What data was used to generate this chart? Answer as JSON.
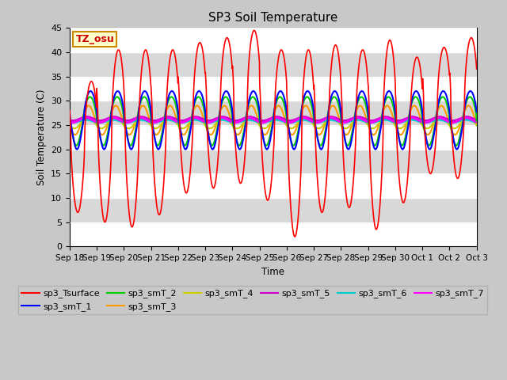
{
  "title": "SP3 Soil Temperature",
  "ylabel": "Soil Temperature (C)",
  "xlabel": "Time",
  "tz_label": "TZ_osu",
  "ylim": [
    0,
    45
  ],
  "yticks": [
    0,
    5,
    10,
    15,
    20,
    25,
    30,
    35,
    40,
    45
  ],
  "x_tick_labels": [
    "Sep 18",
    "Sep 19",
    "Sep 20",
    "Sep 21",
    "Sep 22",
    "Sep 23",
    "Sep 24",
    "Sep 25",
    "Sep 26",
    "Sep 27",
    "Sep 28",
    "Sep 29",
    "Sep 30",
    "Oct 1",
    "Oct 2",
    "Oct 3"
  ],
  "series_colors": {
    "sp3_Tsurface": "#ff0000",
    "sp3_smT_1": "#0000ff",
    "sp3_smT_2": "#00cc00",
    "sp3_smT_3": "#ff9900",
    "sp3_smT_4": "#cccc00",
    "sp3_smT_5": "#cc00cc",
    "sp3_smT_6": "#00cccc",
    "sp3_smT_7": "#ff00ff"
  },
  "n_days": 15,
  "pts_per_day": 96,
  "figure_facecolor": "#c8c8c8",
  "axes_facecolor": "#e8e8e8",
  "band_colors": [
    "#ffffff",
    "#d8d8d8"
  ],
  "band_step": 5
}
